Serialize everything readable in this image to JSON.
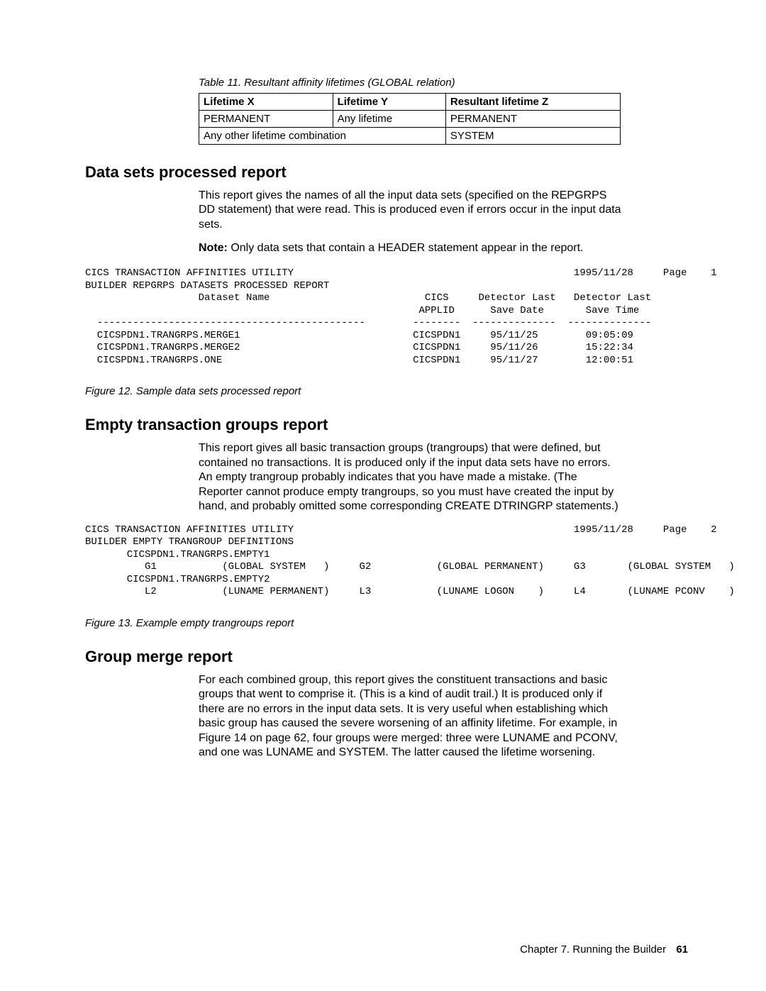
{
  "table11": {
    "caption": "Table 11. Resultant affinity lifetimes (GLOBAL relation)",
    "headers": {
      "c0": "Lifetime X",
      "c1": "Lifetime Y",
      "c2": "Resultant lifetime Z"
    },
    "rows": [
      {
        "c0": "PERMANENT",
        "c1": "Any lifetime",
        "c2": "PERMANENT"
      },
      {
        "c0": "Any other lifetime combination",
        "c1": "",
        "c2": "SYSTEM"
      }
    ]
  },
  "section1": {
    "title": "Data sets processed report",
    "para": "This report gives the names of all the input data sets (specified on the REPGRPS DD statement) that were read. This is produced even if errors occur in the input data sets.",
    "note_label": "Note:",
    "note_text": " Only data sets that contain a HEADER statement appear in the report."
  },
  "figure12": {
    "block": "CICS TRANSACTION AFFINITIES UTILITY                                               1995/11/28     Page    1\nBUILDER REPGRPS DATASETS PROCESSED REPORT\n                   Dataset Name                          CICS     Detector Last   Detector Last\n                                                        APPLID      Save Date       Save Time\n  ---------------------------------------------        --------  --------------  --------------\n  CICSPDN1.TRANGRPS.MERGE1                             CICSPDN1     95/11/25        09:05:09\n  CICSPDN1.TRANGRPS.MERGE2                             CICSPDN1     95/11/26        15:22:34\n  CICSPDN1.TRANGRPS.ONE                                CICSPDN1     95/11/27        12:00:51",
    "caption": "Figure 12. Sample data sets processed report"
  },
  "section2": {
    "title": "Empty transaction groups report",
    "para": "This report gives all basic transaction groups (trangroups) that were defined, but contained no transactions. It is produced only if the input data sets have no errors. An empty trangroup probably indicates that you have made a mistake. (The Reporter cannot produce empty trangroups, so you must have created the input by hand, and probably omitted some corresponding CREATE DTRINGRP statements.)"
  },
  "figure13": {
    "block": "CICS TRANSACTION AFFINITIES UTILITY                                               1995/11/28     Page    2\nBUILDER EMPTY TRANGROUP DEFINITIONS\n       CICSPDN1.TRANGRPS.EMPTY1\n          G1           (GLOBAL SYSTEM   )     G2           (GLOBAL PERMANENT)     G3       (GLOBAL SYSTEM   )\n       CICSPDN1.TRANGRPS.EMPTY2\n          L2           (LUNAME PERMANENT)     L3           (LUNAME LOGON    )     L4       (LUNAME PCONV    )",
    "caption": "Figure 13. Example empty trangroups report"
  },
  "section3": {
    "title": "Group merge report",
    "para": "For each combined group, this report gives the constituent transactions and basic groups that went to comprise it. (This is a kind of audit trail.) It is produced only if there are no errors in the input data sets. It is very useful when establishing which basic group has caused the severe worsening of an affinity lifetime. For example, in Figure 14 on page 62, four groups were merged: three were LUNAME and PCONV, and one was LUNAME and SYSTEM. The latter caused the lifetime worsening."
  },
  "footer": {
    "chapter": "Chapter 7. Running the Builder",
    "page": "61"
  }
}
